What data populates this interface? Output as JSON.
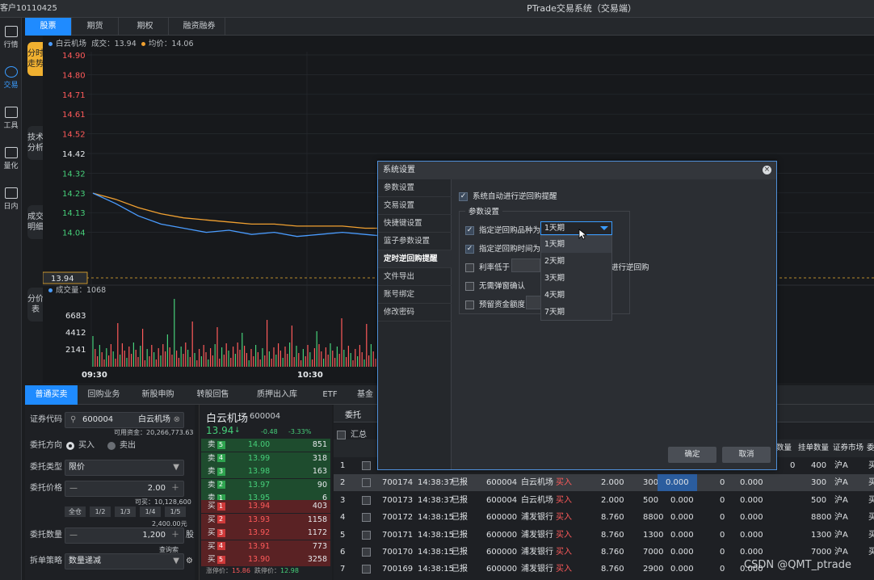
{
  "titlebar": {
    "account": "客户10110425",
    "title": "PTrade交易系统（交易端）"
  },
  "leftnav": [
    {
      "label": "行情",
      "icon": "chart-icon"
    },
    {
      "label": "交易",
      "icon": "trade-icon"
    },
    {
      "label": "工具",
      "icon": "toolbox-icon"
    },
    {
      "label": "量化",
      "icon": "quant-icon"
    },
    {
      "label": "日内",
      "icon": "intraday-icon"
    }
  ],
  "tabs": [
    "股票",
    "期货",
    "期权",
    "融资融券"
  ],
  "vtabs": [
    "分时走势",
    "技术分析",
    "成交明细",
    "分价表"
  ],
  "legend": {
    "name": "白云机场",
    "deal": "成交：13.94",
    "avg": "均价：14.06",
    "volume": "成交量：1068",
    "price_color": "#4a9cff",
    "avg_color": "#f0a030"
  },
  "chart_data": {
    "type": "line",
    "price_axis": [
      "14.90",
      "14.80",
      "14.71",
      "14.61",
      "14.52",
      "14.42",
      "14.32",
      "14.23",
      "14.13",
      "14.04"
    ],
    "current_price": "13.94",
    "volume_axis": [
      "6683",
      "4412",
      "2141"
    ],
    "x_ticks": [
      "09:30",
      "10:30"
    ],
    "series": [
      {
        "name": "成交",
        "values": [
          14.23,
          14.18,
          14.12,
          14.08,
          14.06,
          14.04,
          14.05,
          14.03,
          14.04,
          14.02,
          14.03,
          14.04,
          14.03,
          14.02
        ]
      },
      {
        "name": "均价",
        "values": [
          14.23,
          14.2,
          14.16,
          14.13,
          14.11,
          14.1,
          14.09,
          14.08,
          14.08,
          14.07,
          14.07,
          14.07,
          14.06,
          14.06
        ]
      }
    ]
  },
  "bottomtabs": [
    "普通买卖",
    "回购业务",
    "新股申购",
    "转股回售",
    "质押出入库",
    "ETF",
    "基金"
  ],
  "form": {
    "code_label": "证券代码",
    "code": "600004",
    "code_name": "白云机场",
    "avail_funds": "可用资金：20,266,773.63",
    "dir_label": "委托方向",
    "buy": "买入",
    "sell": "卖出",
    "type_label": "委托类型",
    "type": "限价",
    "price_label": "委托价格",
    "price": "2.00",
    "can_buy": "可买：10,128,600",
    "ratios": [
      "全仓",
      "1/2",
      "1/3",
      "1/4",
      "1/5"
    ],
    "amount_hint": "2,400.00元",
    "qty_label": "委托数量",
    "qty": "1,200",
    "qty_unit": "股",
    "qty_note": "查询索",
    "split_label": "拆单策略",
    "split": "数量递减"
  },
  "quote": {
    "name": "白云机场",
    "code": "600004",
    "price": "13.94",
    "change": "-0.48",
    "pct": "-3.33%",
    "sells": [
      {
        "lv": "卖",
        "n": "5",
        "price": "14.00",
        "vol": "851"
      },
      {
        "lv": "卖",
        "n": "4",
        "price": "13.99",
        "vol": "318"
      },
      {
        "lv": "卖",
        "n": "3",
        "price": "13.98",
        "vol": "163"
      },
      {
        "lv": "卖",
        "n": "2",
        "price": "13.97",
        "vol": "90"
      },
      {
        "lv": "卖",
        "n": "1",
        "price": "13.95",
        "vol": "6"
      }
    ],
    "buys": [
      {
        "lv": "买",
        "n": "1",
        "price": "13.94",
        "vol": "403"
      },
      {
        "lv": "买",
        "n": "2",
        "price": "13.93",
        "vol": "1158"
      },
      {
        "lv": "买",
        "n": "3",
        "price": "13.92",
        "vol": "1172"
      },
      {
        "lv": "买",
        "n": "4",
        "price": "13.91",
        "vol": "773"
      },
      {
        "lv": "买",
        "n": "5",
        "price": "13.90",
        "vol": "3258"
      }
    ],
    "limit_up": "涨停价：",
    "limit_up_val": "15.86",
    "limit_down": "跌停价：",
    "limit_down_val": "12.98"
  },
  "orders": {
    "tab": "委托",
    "summary": "汇总",
    "headers": [
      "数量",
      "挂单数量",
      "证券市场",
      "委"
    ],
    "rows": [
      {
        "no": "1",
        "id": "",
        "time": "",
        "status": "",
        "code": "",
        "name": "",
        "side": "",
        "price": "",
        "qty": "",
        "avg": "",
        "a": "",
        "b": "",
        "hang": "400",
        "mkt": "沪A",
        "x": "买"
      },
      {
        "no": "2",
        "id": "700174",
        "time": "14:38:37",
        "status": "已报",
        "code": "600004",
        "name": "白云机场",
        "side": "买入",
        "price": "2.000",
        "qty": "300",
        "avg": "0.000",
        "a": "0",
        "b": "0.000",
        "hang": "300",
        "mkt": "沪A",
        "x": "买"
      },
      {
        "no": "3",
        "id": "700173",
        "time": "14:38:37",
        "status": "已报",
        "code": "600004",
        "name": "白云机场",
        "side": "买入",
        "price": "2.000",
        "qty": "500",
        "avg": "0.000",
        "a": "0",
        "b": "0.000",
        "hang": "500",
        "mkt": "沪A",
        "x": "买"
      },
      {
        "no": "4",
        "id": "700172",
        "time": "14:38:15",
        "status": "已报",
        "code": "600000",
        "name": "浦发银行",
        "side": "买入",
        "price": "8.760",
        "qty": "8800",
        "avg": "0.000",
        "a": "0",
        "b": "0.000",
        "hang": "8800",
        "mkt": "沪A",
        "x": "买"
      },
      {
        "no": "5",
        "id": "700171",
        "time": "14:38:15",
        "status": "已报",
        "code": "600000",
        "name": "浦发银行",
        "side": "买入",
        "price": "8.760",
        "qty": "1300",
        "avg": "0.000",
        "a": "0",
        "b": "0.000",
        "hang": "1300",
        "mkt": "沪A",
        "x": "买"
      },
      {
        "no": "6",
        "id": "700170",
        "time": "14:38:15",
        "status": "已报",
        "code": "600000",
        "name": "浦发银行",
        "side": "买入",
        "price": "8.760",
        "qty": "7000",
        "avg": "0.000",
        "a": "0",
        "b": "0.000",
        "hang": "7000",
        "mkt": "沪A",
        "x": "买"
      },
      {
        "no": "7",
        "id": "700169",
        "time": "14:38:15",
        "status": "已报",
        "code": "600000",
        "name": "浦发银行",
        "side": "买入",
        "price": "8.760",
        "qty": "2900",
        "avg": "0.000",
        "a": "0",
        "b": "0.000",
        "hang": "",
        "mkt": "",
        "x": ""
      }
    ],
    "first_row_lead": "0"
  },
  "dialog": {
    "title": "系统设置",
    "nav": [
      "参数设置",
      "交易设置",
      "快捷键设置",
      "篮子参数设置",
      "定时逆回购提醒",
      "文件导出",
      "账号绑定",
      "修改密码"
    ],
    "active_nav": 4,
    "auto_remind": "系统自动进行逆回购提醒",
    "group_title": "参数设置",
    "opt_variety": "指定逆回购品种为",
    "opt_time": "指定逆回购时间为",
    "opt_rate": "利率低于",
    "opt_rate_tail": "进行逆回购",
    "opt_no_popup": "无需弹窗确认",
    "opt_reserve": "预留资金额度",
    "selected": "1天期",
    "options": [
      "1天期",
      "2天期",
      "3天期",
      "4天期",
      "7天期"
    ],
    "ok": "确定",
    "cancel": "取消"
  },
  "watermark": "CSDN @QMT_ptrade"
}
